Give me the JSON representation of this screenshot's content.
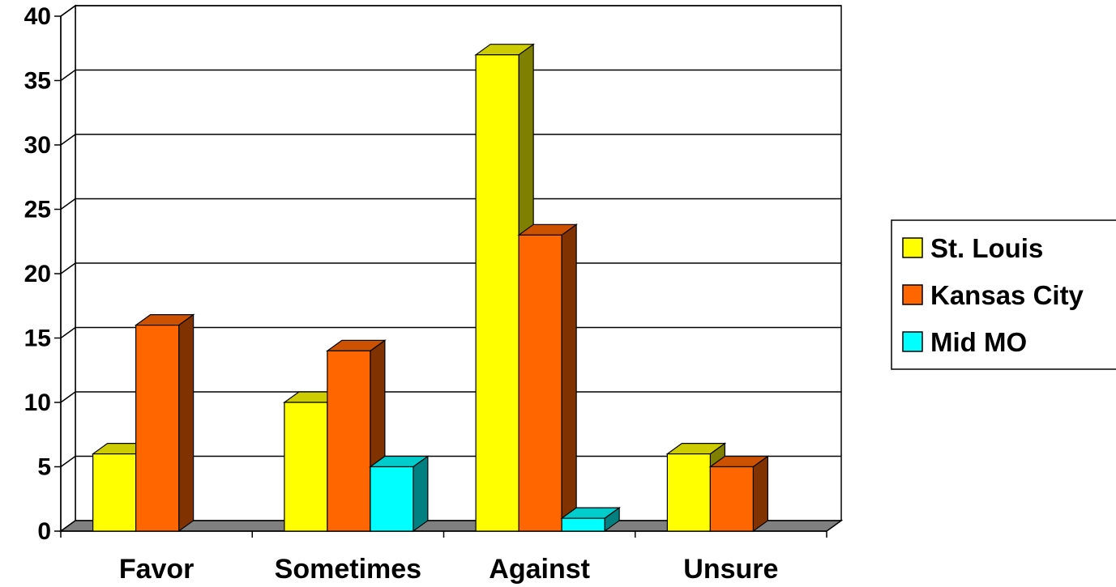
{
  "chart_data": {
    "type": "bar",
    "title": "",
    "xlabel": "",
    "ylabel": "",
    "categories": [
      "Favor",
      "Sometimes",
      "Against",
      "Unsure"
    ],
    "ylim": [
      0,
      40
    ],
    "yticks": [
      "0",
      "5",
      "10",
      "15",
      "20",
      "25",
      "30",
      "35",
      "40"
    ],
    "grid": true,
    "three_d": true,
    "legend_position": "right",
    "series": [
      {
        "name": "St. Louis",
        "values": [
          6,
          10,
          37,
          6
        ],
        "color": "#FFFF00",
        "top_color": "#CCCC00",
        "side_color": "#808000"
      },
      {
        "name": "Kansas City",
        "values": [
          16,
          14,
          23,
          5
        ],
        "color": "#FF6600",
        "top_color": "#CC5200",
        "side_color": "#803300"
      },
      {
        "name": "Mid MO",
        "values": [
          0,
          5,
          1,
          0
        ],
        "color": "#00FFFF",
        "top_color": "#00CCCC",
        "side_color": "#008080"
      }
    ]
  }
}
